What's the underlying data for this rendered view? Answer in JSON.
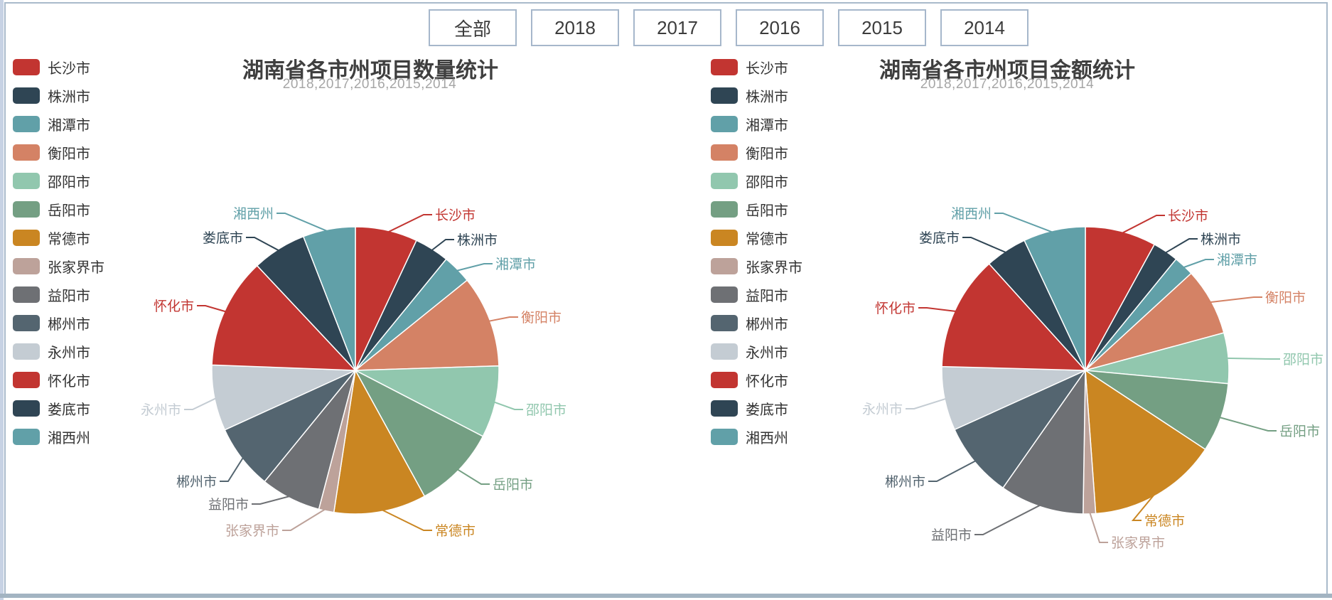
{
  "page": {
    "year_filters": [
      "全部",
      "2018",
      "2017",
      "2016",
      "2015",
      "2014"
    ],
    "frame_border_color": "#a9bacb",
    "bottom_bar_color": "#a3b4c2"
  },
  "chart_data": [
    {
      "type": "pie",
      "title": "湖南省各市州项目数量统计",
      "subtitle": "2018,2017,2016,2015,2014",
      "legend_position": "left",
      "label_style": "outside-with-leader-lines, label colored same as slice",
      "start_angle": "12-o'clock, clockwise",
      "categories": [
        "长沙市",
        "株洲市",
        "湘潭市",
        "衡阳市",
        "邵阳市",
        "岳阳市",
        "常德市",
        "张家界市",
        "益阳市",
        "郴州市",
        "永州市",
        "怀化市",
        "娄底市",
        "湘西州"
      ],
      "colors": [
        "#c23531",
        "#2f4554",
        "#61a0a8",
        "#d48265",
        "#91c7ae",
        "#749f83",
        "#ca8622",
        "#bda29a",
        "#6e7074",
        "#546570",
        "#c4ccd3",
        "#c23531",
        "#2f4554",
        "#61a0a8"
      ],
      "values_percent": [
        7.0,
        3.9,
        3.3,
        10.3,
        8.1,
        9.4,
        10.4,
        1.7,
        6.8,
        7.3,
        7.4,
        12.4,
        6.1,
        5.9
      ],
      "note": "no numeric labels shown in chart; values are percentages estimated from slice angles"
    },
    {
      "type": "pie",
      "title": "湖南省各市州项目金额统计",
      "subtitle": "2018,2017,2016,2015,2014",
      "legend_position": "left",
      "label_style": "outside-with-leader-lines, label colored same as slice",
      "start_angle": "12-o'clock, clockwise",
      "categories": [
        "长沙市",
        "株洲市",
        "湘潭市",
        "衡阳市",
        "邵阳市",
        "岳阳市",
        "常德市",
        "张家界市",
        "益阳市",
        "郴州市",
        "永州市",
        "怀化市",
        "娄底市",
        "湘西州"
      ],
      "colors": [
        "#c23531",
        "#2f4554",
        "#61a0a8",
        "#d48265",
        "#91c7ae",
        "#749f83",
        "#ca8622",
        "#bda29a",
        "#6e7074",
        "#546570",
        "#c4ccd3",
        "#c23531",
        "#2f4554",
        "#61a0a8"
      ],
      "values_percent": [
        8.0,
        2.9,
        2.3,
        7.6,
        5.7,
        7.8,
        14.6,
        1.4,
        9.5,
        8.5,
        7.2,
        12.9,
        4.7,
        7.0
      ],
      "note": "no numeric labels shown in chart; values are percentages estimated from slice angles"
    }
  ]
}
